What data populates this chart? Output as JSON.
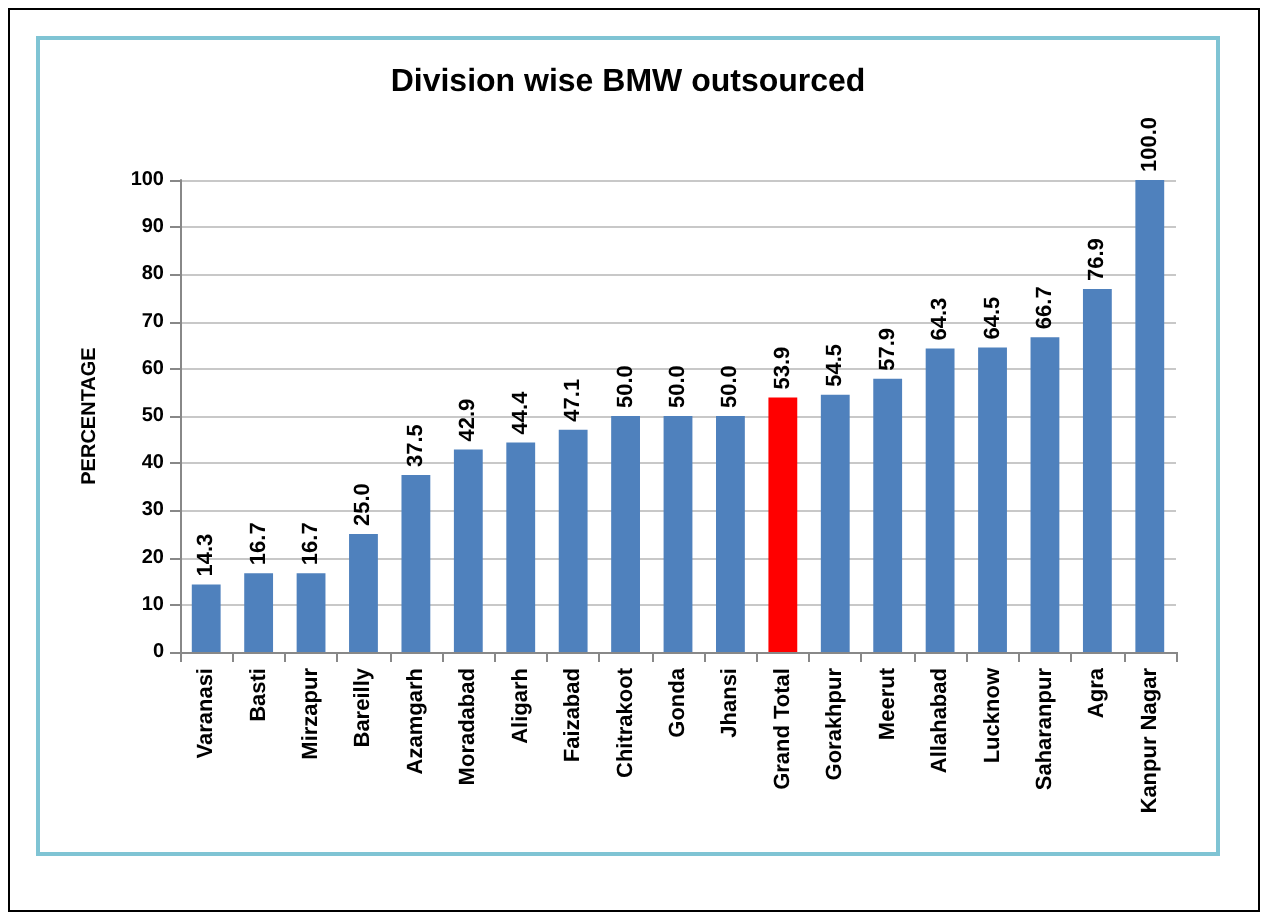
{
  "chart_data": {
    "type": "bar",
    "title": "Division wise BMW outsourced",
    "ylabel": "PERCENTAGE",
    "categories": [
      "Varanasi",
      "Basti",
      "Mirzapur",
      "Bareilly",
      "Azamgarh",
      "Moradabad",
      "Aligarh",
      "Faizabad",
      "Chitrakoot",
      "Gonda",
      "Jhansi",
      "Grand Total",
      "Gorakhpur",
      "Meerut",
      "Allahabad",
      "Lucknow",
      "Saharanpur",
      "Agra",
      "Kanpur Nagar"
    ],
    "values": [
      14.3,
      16.7,
      16.7,
      25.0,
      37.5,
      42.9,
      44.4,
      47.1,
      50.0,
      50.0,
      50.0,
      53.9,
      54.5,
      57.9,
      64.3,
      64.5,
      66.7,
      76.9,
      100.0
    ],
    "colors": [
      "#4f81bd",
      "#4f81bd",
      "#4f81bd",
      "#4f81bd",
      "#4f81bd",
      "#4f81bd",
      "#4f81bd",
      "#4f81bd",
      "#4f81bd",
      "#4f81bd",
      "#4f81bd",
      "#ff0000",
      "#4f81bd",
      "#4f81bd",
      "#4f81bd",
      "#4f81bd",
      "#4f81bd",
      "#4f81bd",
      "#4f81bd"
    ],
    "value_labels": [
      "14.3",
      "16.7",
      "16.7",
      "25.0",
      "37.5",
      "42.9",
      "44.4",
      "47.1",
      "50.0",
      "50.0",
      "50.0",
      "53.9",
      "54.5",
      "57.9",
      "64.3",
      "64.5",
      "66.7",
      "76.9",
      "100.0"
    ],
    "ylim": [
      0,
      100
    ],
    "yticks": [
      0,
      10,
      20,
      30,
      40,
      50,
      60,
      70,
      80,
      90,
      100
    ],
    "grid": "y"
  }
}
